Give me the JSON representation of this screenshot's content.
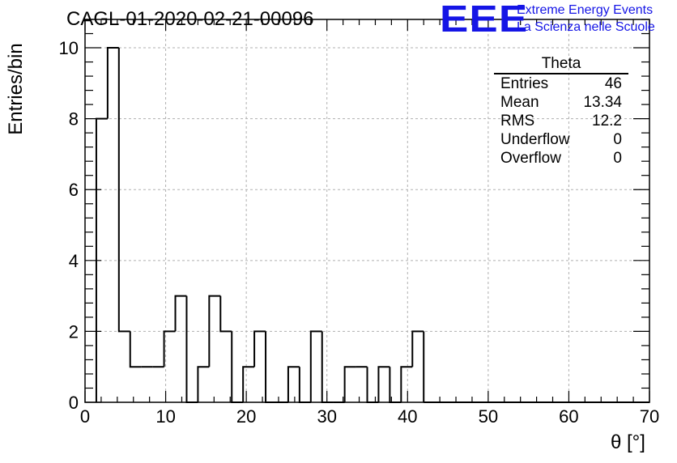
{
  "header": {
    "title": "CAGL-01-2020-02-21-00096",
    "logo_text": "EEE",
    "logo_line1": "Extreme Energy Events",
    "logo_line2": "La Scienza nelle Scuole"
  },
  "stats_box": {
    "title": "Theta",
    "rows": [
      {
        "label": "Entries",
        "value": "46"
      },
      {
        "label": "Mean",
        "value": "13.34"
      },
      {
        "label": "RMS",
        "value": "12.2"
      },
      {
        "label": "Underflow",
        "value": "0"
      },
      {
        "label": "Overflow",
        "value": "0"
      }
    ]
  },
  "colors": {
    "accent": "#1515e6",
    "line": "#000000",
    "grid": "#b0b0b0"
  },
  "chart_data": {
    "type": "bar",
    "histogram": true,
    "title": "CAGL-01-2020-02-21-00096",
    "xlabel": "θ [°]",
    "ylabel": "Entries/bin",
    "xlim": [
      0,
      70
    ],
    "ylim": [
      0,
      10.8
    ],
    "grid": true,
    "x_ticks": [
      0,
      10,
      20,
      30,
      40,
      50,
      60,
      70
    ],
    "y_ticks": [
      0,
      2,
      4,
      6,
      8,
      10
    ],
    "bin_edges": [
      1.4,
      2.8,
      4.2,
      5.6,
      7.0,
      8.4,
      9.8,
      11.2,
      12.6,
      14.0,
      15.4,
      16.8,
      18.2,
      19.6,
      21.0,
      22.4,
      23.8,
      25.2,
      26.6,
      28.0,
      29.4,
      30.8,
      32.2,
      33.6,
      35.0,
      36.4,
      37.8,
      39.2,
      40.6,
      42.0
    ],
    "values": [
      8,
      10,
      2,
      1,
      1,
      1,
      2,
      3,
      0,
      1,
      3,
      2,
      0,
      1,
      2,
      0,
      0,
      1,
      0,
      2,
      0,
      0,
      1,
      1,
      0,
      1,
      0,
      1,
      2
    ]
  }
}
